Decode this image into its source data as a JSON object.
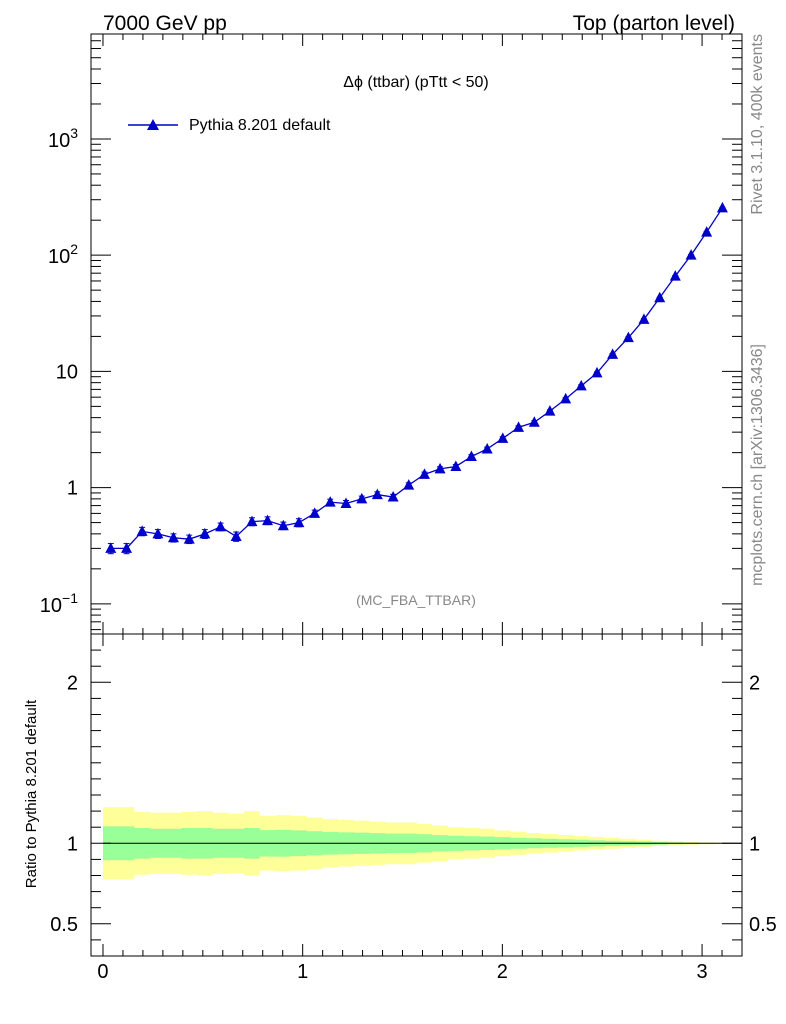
{
  "header": {
    "left": "7000 GeV pp",
    "right": "Top (parton level)"
  },
  "side_labels": {
    "top": "Rivet 3.1.10,  400k events",
    "bottom": "mcplots.cern.ch [arXiv:1306.3436]"
  },
  "colors": {
    "series": "#0000cc",
    "band_inner": "#99ff99",
    "band_outer": "#ffff99"
  },
  "chart_data": [
    {
      "type": "line",
      "title": "Δϕ (ttbar) (pTtt < 50)",
      "annotation": "(MC_FBA_TTBAR)",
      "legend_placement": "top-left",
      "yscale": "log",
      "xlim": [
        -0.06,
        3.2
      ],
      "ylim": [
        0.055,
        8000
      ],
      "yticks": [
        {
          "value": 0.1,
          "base": "10",
          "exp": "−1"
        },
        {
          "value": 1,
          "text": "1"
        },
        {
          "value": 10,
          "text": "10"
        },
        {
          "value": 100,
          "base": "10",
          "exp": "2"
        },
        {
          "value": 1000,
          "base": "10",
          "exp": "3"
        }
      ],
      "series": [
        {
          "name": "Pythia 8.201 default",
          "marker": "triangle",
          "x": [
            0.039,
            0.118,
            0.196,
            0.275,
            0.353,
            0.432,
            0.51,
            0.589,
            0.667,
            0.746,
            0.824,
            0.903,
            0.981,
            1.06,
            1.138,
            1.217,
            1.296,
            1.374,
            1.453,
            1.531,
            1.61,
            1.688,
            1.767,
            1.845,
            1.924,
            2.002,
            2.081,
            2.16,
            2.238,
            2.317,
            2.395,
            2.474,
            2.552,
            2.631,
            2.709,
            2.788,
            2.866,
            2.945,
            3.023,
            3.102
          ],
          "y": [
            0.3,
            0.3,
            0.42,
            0.4,
            0.37,
            0.36,
            0.4,
            0.46,
            0.38,
            0.51,
            0.52,
            0.47,
            0.5,
            0.6,
            0.75,
            0.73,
            0.8,
            0.87,
            0.83,
            1.05,
            1.3,
            1.45,
            1.52,
            1.85,
            2.15,
            2.65,
            3.3,
            3.65,
            4.55,
            5.8,
            7.5,
            9.7,
            14,
            19.5,
            28,
            43,
            66,
            100,
            158,
            255
          ],
          "yerr": [
            0.03,
            0.03,
            0.035,
            0.035,
            0.03,
            0.03,
            0.035,
            0.035,
            0.035,
            0.04,
            0.04,
            0.035,
            0.04,
            0.04,
            0.045,
            0.045,
            0.045,
            0.05,
            0.045,
            0.05,
            0.06,
            0.06,
            0.06,
            0.07,
            0.08,
            0.09,
            0.1,
            0.11,
            0.12,
            0.15,
            0.18,
            0.2,
            0.25,
            0.3,
            0.4,
            0.5,
            0.7,
            1,
            1.4,
            2
          ]
        }
      ]
    },
    {
      "type": "area",
      "ylabel": "Ratio to Pythia 8.201 default",
      "yscale": "linear",
      "xlim": [
        -0.06,
        3.2
      ],
      "ylim": [
        0.3,
        2.3
      ],
      "xticks": [
        0,
        1,
        2,
        3
      ],
      "yticks": [
        0.5,
        1,
        2
      ],
      "reference": 1,
      "bins": [
        0,
        0.157,
        0.236,
        0.314,
        0.393,
        0.471,
        0.55,
        0.628,
        0.707,
        0.785,
        0.864,
        0.942,
        1.021,
        1.1,
        1.178,
        1.257,
        1.335,
        1.414,
        1.492,
        1.571,
        1.649,
        1.728,
        1.806,
        1.885,
        1.963,
        2.042,
        2.121,
        2.199,
        2.278,
        2.356,
        2.435,
        2.513,
        2.592,
        2.67,
        2.749,
        2.827,
        2.906,
        2.985,
        3.063,
        3.142
      ],
      "band_outer": [
        0.225,
        0.195,
        0.19,
        0.19,
        0.195,
        0.2,
        0.19,
        0.185,
        0.2,
        0.17,
        0.175,
        0.17,
        0.16,
        0.15,
        0.145,
        0.14,
        0.135,
        0.13,
        0.13,
        0.12,
        0.11,
        0.1,
        0.095,
        0.09,
        0.08,
        0.072,
        0.064,
        0.058,
        0.052,
        0.045,
        0.04,
        0.034,
        0.028,
        0.022,
        0.017,
        0.013,
        0.009,
        0.006,
        0.004
      ],
      "band_inner": [
        0.105,
        0.095,
        0.09,
        0.09,
        0.095,
        0.095,
        0.09,
        0.09,
        0.095,
        0.082,
        0.083,
        0.08,
        0.075,
        0.07,
        0.068,
        0.066,
        0.063,
        0.06,
        0.06,
        0.056,
        0.051,
        0.047,
        0.044,
        0.042,
        0.038,
        0.034,
        0.031,
        0.028,
        0.025,
        0.022,
        0.019,
        0.016,
        0.013,
        0.011,
        0.008,
        0.006,
        0.004,
        0.003,
        0.002
      ]
    }
  ]
}
